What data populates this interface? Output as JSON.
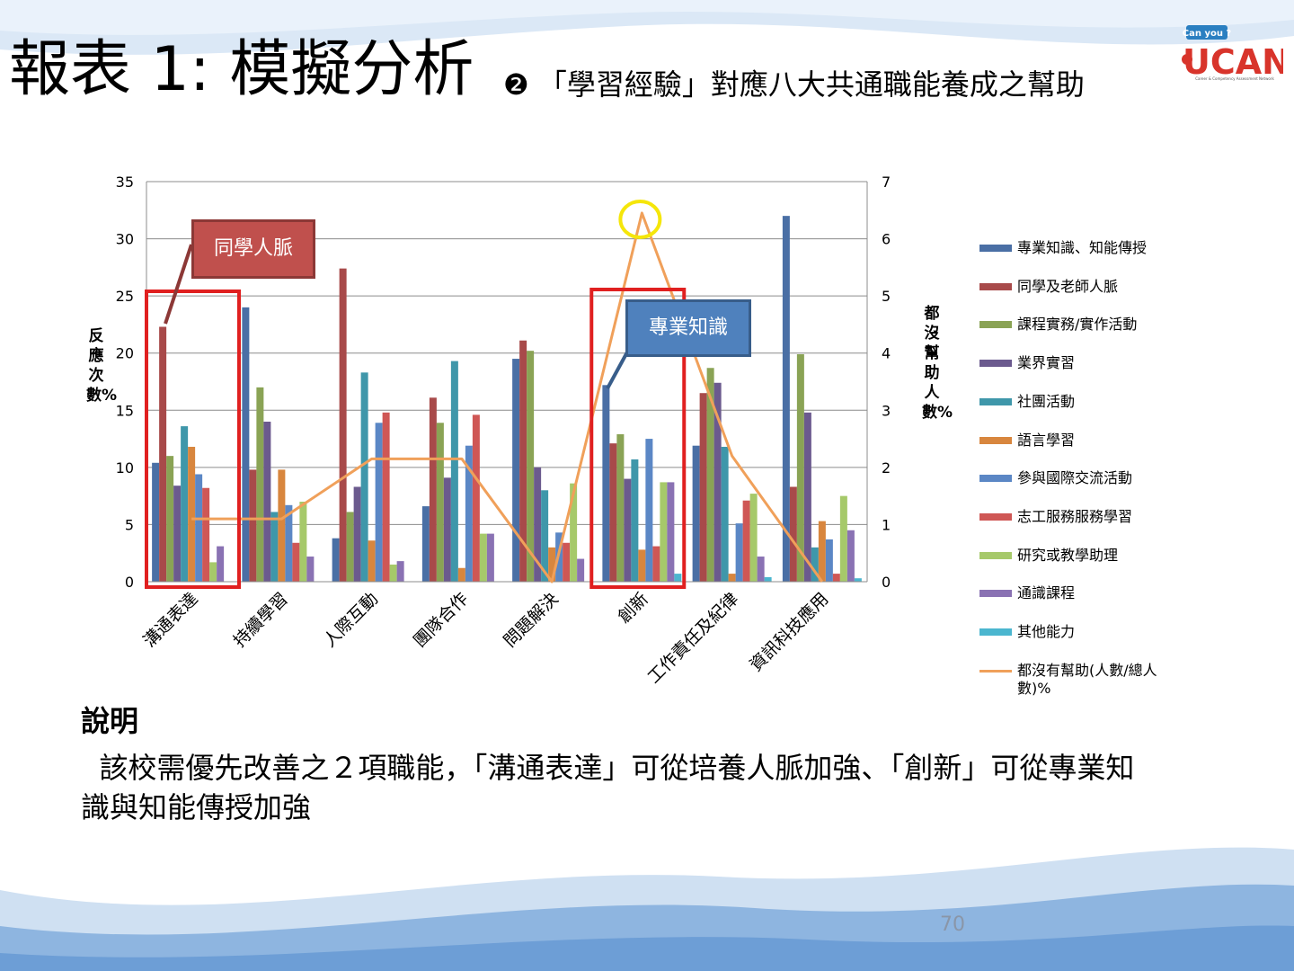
{
  "slide": {
    "title": "報表 1: 模擬分析",
    "subtitle": "❷ 「學習經驗」對應八大共通職能養成之幫助",
    "explanation_heading": "說明",
    "explanation_body": "  該校需優先改善之２項職能，「溝通表達」可從培養人脈加強、「創新」可從專業知識與知能傳授加強",
    "page_number": "70",
    "logo": {
      "top_text": "Can you ?",
      "main_text": "UCAN",
      "tagline": "Career & Competency Assessment Network"
    }
  },
  "callouts": {
    "classmates": "同學人脈",
    "professional": "專業知識"
  },
  "colors": {
    "background_wave_light": "#dbe8f6",
    "background_wave_dark": "#8eb5e0",
    "highlight_box": "#e02020",
    "highlight_circle": "#f5e60a"
  },
  "chart_data": {
    "type": "bar",
    "categories": [
      "溝通表達",
      "持續學習",
      "人際互動",
      "團隊合作",
      "問題解決",
      "創新",
      "工作責任及紀律",
      "資訊科技應用"
    ],
    "ylabel": "反應次數%",
    "ylabel_right": "都沒幫助人數%",
    "ylim": [
      0,
      35
    ],
    "yticks": [
      0,
      5,
      10,
      15,
      20,
      25,
      30,
      35
    ],
    "ylim_right": [
      0,
      7
    ],
    "yticks_right": [
      0,
      1,
      2,
      3,
      4,
      5,
      6,
      7
    ],
    "grid": true,
    "legend_position": "right",
    "series": [
      {
        "name": "專業知識、知能傳授",
        "color": "#4a6fa5",
        "values": [
          10.4,
          24.0,
          3.8,
          6.6,
          19.5,
          17.2,
          11.9,
          32.0
        ]
      },
      {
        "name": "同學及老師人脈",
        "color": "#a84a4a",
        "values": [
          22.3,
          9.8,
          27.4,
          16.1,
          21.1,
          12.1,
          16.5,
          8.3
        ]
      },
      {
        "name": "課程實務/實作活動",
        "color": "#8aa355",
        "values": [
          11.0,
          17.0,
          6.1,
          13.9,
          20.2,
          12.9,
          18.7,
          19.9
        ]
      },
      {
        "name": "業界實習",
        "color": "#6b5a8e",
        "values": [
          8.4,
          14.0,
          8.3,
          9.1,
          10.0,
          9.0,
          17.4,
          14.8
        ]
      },
      {
        "name": "社團活動",
        "color": "#3f97aa",
        "values": [
          13.6,
          6.1,
          18.3,
          19.3,
          8.0,
          10.7,
          11.8,
          3.0
        ]
      },
      {
        "name": "語言學習",
        "color": "#d8863e",
        "values": [
          11.8,
          9.8,
          3.6,
          1.2,
          3.0,
          2.8,
          0.7,
          5.3
        ]
      },
      {
        "name": "參與國際交流活動",
        "color": "#5b87c5",
        "values": [
          9.4,
          6.7,
          13.9,
          11.9,
          4.3,
          12.5,
          5.1,
          3.7
        ]
      },
      {
        "name": "志工服務服務學習",
        "color": "#cf5755",
        "values": [
          8.2,
          3.4,
          14.8,
          14.6,
          3.4,
          3.1,
          7.1,
          0.7
        ]
      },
      {
        "name": "研究或教學助理",
        "color": "#a6c96a",
        "values": [
          1.7,
          7.0,
          1.5,
          4.2,
          8.6,
          8.7,
          7.7,
          7.5
        ]
      },
      {
        "name": "通識課程",
        "color": "#8a72b3",
        "values": [
          3.1,
          2.2,
          1.8,
          4.2,
          2.0,
          8.7,
          2.2,
          4.5
        ]
      },
      {
        "name": "其他能力",
        "color": "#4bb6cf",
        "values": [
          0,
          0,
          0,
          0,
          0,
          0.7,
          0.4,
          0.3
        ]
      }
    ],
    "line_series": [
      {
        "name": "都沒有幫助(人數/總人數)%",
        "color": "#f0a05a",
        "axis": "right",
        "values": [
          1.1,
          1.1,
          2.15,
          2.15,
          0,
          6.45,
          2.2,
          0
        ]
      }
    ]
  }
}
